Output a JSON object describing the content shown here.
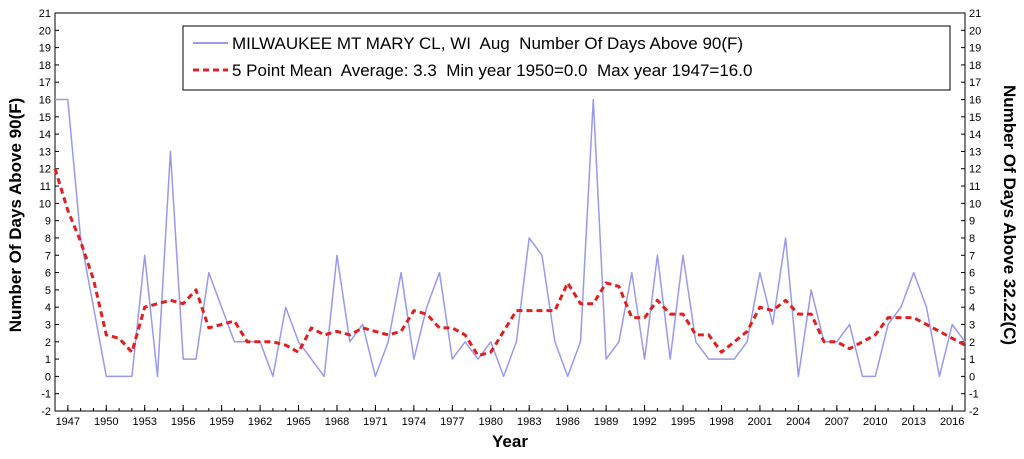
{
  "chart_data": {
    "type": "line",
    "legend": {
      "raw_label": "MILWAUKEE MT MARY CL, WI  Aug  Number Of Days Above 90(F)",
      "mean_label": "5 Point Mean  Average: 3.3  Min year 1950=0.0  Max year 1947=16.0",
      "placement": "top-right"
    },
    "xlabel": "Year",
    "ylabel_left": "Number Of Days Above 90(F)",
    "ylabel_right": "Number Of Days Above 32.22(C)",
    "ylim": [
      -2,
      21
    ],
    "xlim": [
      1946,
      2017
    ],
    "grid": false,
    "x_ticks": [
      "1947",
      "1950",
      "1953",
      "1956",
      "1959",
      "1962",
      "1965",
      "1968",
      "1971",
      "1974",
      "1977",
      "1980",
      "1983",
      "1986",
      "1989",
      "1992",
      "1995",
      "1998",
      "2001",
      "2004",
      "2007",
      "2010",
      "2013",
      "2016"
    ],
    "series": [
      {
        "name": "MILWAUKEE MT MARY CL, WI  Aug  Number Of Days Above 90(F)",
        "color": "#9999ee",
        "style": "solid",
        "x": [
          1946,
          1947,
          1948,
          1949,
          1950,
          1951,
          1952,
          1953,
          1954,
          1955,
          1956,
          1957,
          1958,
          1959,
          1960,
          1961,
          1962,
          1963,
          1964,
          1965,
          1966,
          1967,
          1968,
          1969,
          1970,
          1971,
          1972,
          1973,
          1974,
          1975,
          1976,
          1977,
          1978,
          1979,
          1980,
          1981,
          1982,
          1983,
          1984,
          1985,
          1986,
          1987,
          1988,
          1989,
          1990,
          1991,
          1992,
          1993,
          1994,
          1995,
          1996,
          1997,
          1998,
          1999,
          2000,
          2001,
          2002,
          2003,
          2004,
          2005,
          2006,
          2007,
          2008,
          2009,
          2010,
          2011,
          2012,
          2013,
          2014,
          2015,
          2016,
          2017
        ],
        "values": [
          16,
          16,
          8,
          4,
          0,
          0,
          0,
          7,
          0,
          13,
          1,
          1,
          6,
          4,
          2,
          2,
          2,
          0,
          4,
          2,
          1,
          0,
          7,
          2,
          3,
          0,
          2,
          6,
          1,
          4,
          6,
          1,
          2,
          1,
          2,
          0,
          2,
          8,
          7,
          2,
          0,
          2,
          16,
          1,
          2,
          6,
          1,
          7,
          1,
          7,
          2,
          1,
          1,
          1,
          2,
          6,
          3,
          8,
          0,
          5,
          2,
          2,
          3,
          0,
          0,
          3,
          4,
          6,
          4,
          0,
          3,
          2
        ]
      },
      {
        "name": "5 Point Mean  Average: 3.3  Min year 1950=0.0  Max year 1947=16.0",
        "color": "#e02020",
        "style": "dashed",
        "x": [
          1946,
          1947,
          1948,
          1949,
          1950,
          1951,
          1952,
          1953,
          1954,
          1955,
          1956,
          1957,
          1958,
          1959,
          1960,
          1961,
          1962,
          1963,
          1964,
          1965,
          1966,
          1967,
          1968,
          1969,
          1970,
          1971,
          1972,
          1973,
          1974,
          1975,
          1976,
          1977,
          1978,
          1979,
          1980,
          1981,
          1982,
          1983,
          1984,
          1985,
          1986,
          1987,
          1988,
          1989,
          1990,
          1991,
          1992,
          1993,
          1994,
          1995,
          1996,
          1997,
          1998,
          1999,
          2000,
          2001,
          2002,
          2003,
          2004,
          2005,
          2006,
          2007,
          2008,
          2009,
          2010,
          2011,
          2012,
          2013,
          2014,
          2015,
          2016,
          2017
        ],
        "values": [
          12,
          9.6,
          7.8,
          5.6,
          2.4,
          2.2,
          1.4,
          4.0,
          4.2,
          4.4,
          4.2,
          5.0,
          2.8,
          3.0,
          3.2,
          2.0,
          2.0,
          2.0,
          1.8,
          1.4,
          2.8,
          2.4,
          2.6,
          2.4,
          2.8,
          2.6,
          2.4,
          2.6,
          3.8,
          3.6,
          2.8,
          2.8,
          2.4,
          1.2,
          1.4,
          2.6,
          3.8,
          3.8,
          3.8,
          3.8,
          5.4,
          4.2,
          4.2,
          5.4,
          5.2,
          3.4,
          3.4,
          4.4,
          3.6,
          3.6,
          2.4,
          2.4,
          1.4,
          2.0,
          2.6,
          4.0,
          3.8,
          4.4,
          3.6,
          3.6,
          2.0,
          2.0,
          1.6,
          2.0,
          2.4,
          3.4,
          3.4,
          3.4,
          3.0,
          2.6,
          2.2,
          1.8
        ]
      }
    ]
  }
}
